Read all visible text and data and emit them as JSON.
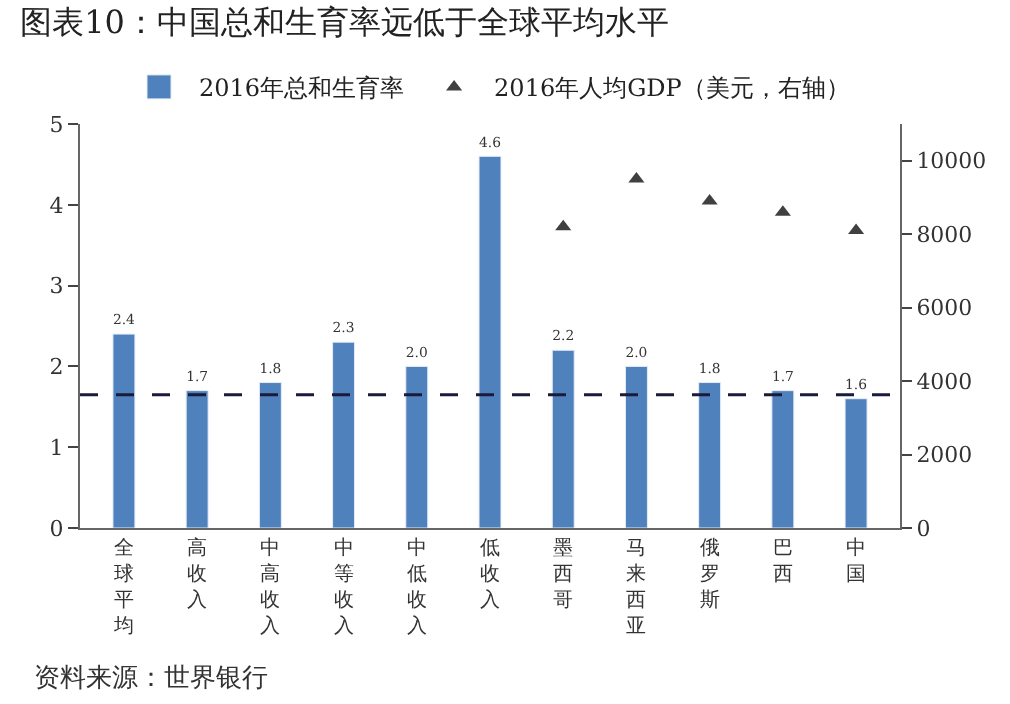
{
  "chart_data": {
    "type": "bar",
    "title": "图表10：中国总和生育率远低于全球平均水平",
    "categories": [
      "全球平均",
      "高收入",
      "中高收入",
      "中等收入",
      "中低收入",
      "低收入",
      "墨西哥",
      "马来西亚",
      "俄罗斯",
      "巴西",
      "中国"
    ],
    "series": [
      {
        "name": "2016年总和生育率",
        "color": "#4f81bd",
        "values": [
          2.4,
          1.7,
          1.8,
          2.3,
          2.0,
          4.6,
          2.2,
          2.0,
          1.8,
          1.7,
          1.6
        ],
        "value_labels": [
          "2.4",
          "1.7",
          "1.8",
          "2.3",
          "2.0",
          "4.6",
          "2.2",
          "2.0",
          "1.8",
          "1.7",
          "1.6"
        ]
      },
      {
        "name": "2016年人均GDP（美元，右轴）",
        "type": "scatter",
        "axis": "y2",
        "marker": "triangle",
        "color": "#404040",
        "values": [
          null,
          null,
          null,
          null,
          null,
          null,
          8200,
          9500,
          8900,
          8600,
          8100
        ]
      }
    ],
    "ylim": [
      0,
      5
    ],
    "yticks": [
      0,
      1,
      2,
      3,
      4,
      5
    ],
    "y2lim": [
      0,
      11000
    ],
    "y2ticks": [
      0,
      2000,
      4000,
      6000,
      8000,
      10000
    ],
    "ref_lines": [
      {
        "axis": "y",
        "value": 1.65,
        "color": "#1a1a3a",
        "line_style": "dashed"
      }
    ],
    "legend": "top",
    "annotations": [
      "资料来源：世界银行"
    ]
  }
}
